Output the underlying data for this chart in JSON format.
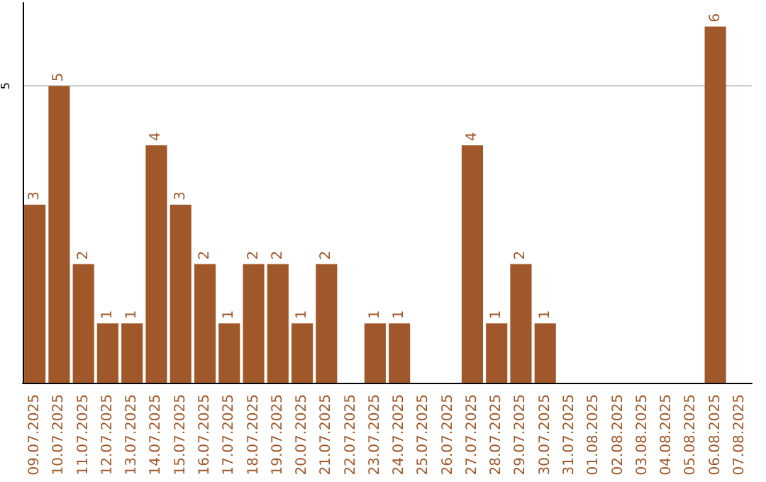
{
  "chart_data": {
    "type": "bar",
    "categories": [
      "09.07.2025",
      "10.07.2025",
      "11.07.2025",
      "12.07.2025",
      "13.07.2025",
      "14.07.2025",
      "15.07.2025",
      "16.07.2025",
      "17.07.2025",
      "18.07.2025",
      "19.07.2025",
      "20.07.2025",
      "21.07.2025",
      "22.07.2025",
      "23.07.2025",
      "24.07.2025",
      "25.07.2025",
      "26.07.2025",
      "27.07.2025",
      "28.07.2025",
      "29.07.2025",
      "30.07.2025",
      "31.07.2025",
      "01.08.2025",
      "02.08.2025",
      "03.08.2025",
      "04.08.2025",
      "05.08.2025",
      "06.08.2025",
      "07.08.2025"
    ],
    "values": [
      3,
      5,
      2,
      1,
      1,
      4,
      3,
      2,
      1,
      2,
      2,
      1,
      2,
      0,
      1,
      1,
      0,
      0,
      4,
      1,
      2,
      1,
      0,
      0,
      0,
      0,
      0,
      0,
      6,
      0
    ],
    "value_labels": [
      "3",
      "5",
      "2",
      "1",
      "1",
      "4",
      "3",
      "2",
      "1",
      "2",
      "2",
      "1",
      "2",
      null,
      "1",
      "1",
      null,
      null,
      "4",
      "1",
      "2",
      "1",
      null,
      null,
      null,
      null,
      null,
      null,
      "6",
      null
    ],
    "color": "#a0582a",
    "ylim": [
      0,
      6.4
    ],
    "yticks": [
      {
        "value": 0,
        "label": null
      },
      5
    ],
    "grid": "y"
  }
}
